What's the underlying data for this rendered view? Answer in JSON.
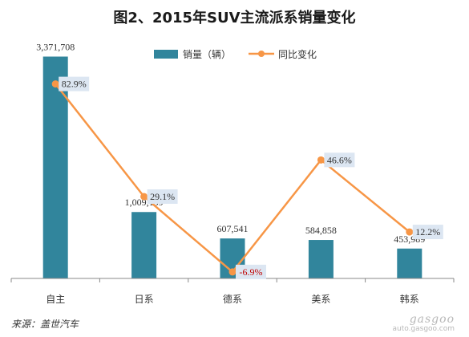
{
  "page": {
    "title": "图2、2015年SUV主流派系销量变化",
    "source": "来源：盖世汽车",
    "watermark": {
      "brand": "gasgoo",
      "url": "auto.gasgoo.com"
    }
  },
  "colors": {
    "bar": "#31859C",
    "line": "#F79646",
    "label_bg": "#DCE6F2",
    "negative_text": "#C00000"
  },
  "chart_data": {
    "type": "bar",
    "title": "图2、2015年SUV主流派系销量变化",
    "categories": [
      "自主",
      "日系",
      "德系",
      "美系",
      "韩系"
    ],
    "series": [
      {
        "name": "销量（辆）",
        "type": "bar",
        "axis": "left",
        "values": [
          3371708,
          1009159,
          607541,
          584858,
          453989
        ],
        "labels": [
          "3,371,708",
          "1,009,159",
          "607,541",
          "584,858",
          "453,989"
        ]
      },
      {
        "name": "同比变化",
        "type": "line",
        "axis": "right",
        "values": [
          82.9,
          29.1,
          -6.9,
          46.6,
          12.2
        ],
        "labels": [
          "82.9%",
          "29.1%",
          "-6.9%",
          "46.6%",
          "12.2%"
        ]
      }
    ],
    "bar_axis_range": [
      0,
      3500000
    ],
    "line_axis_range": [
      -10,
      100
    ],
    "legend_position": "top-center",
    "grid": false
  }
}
